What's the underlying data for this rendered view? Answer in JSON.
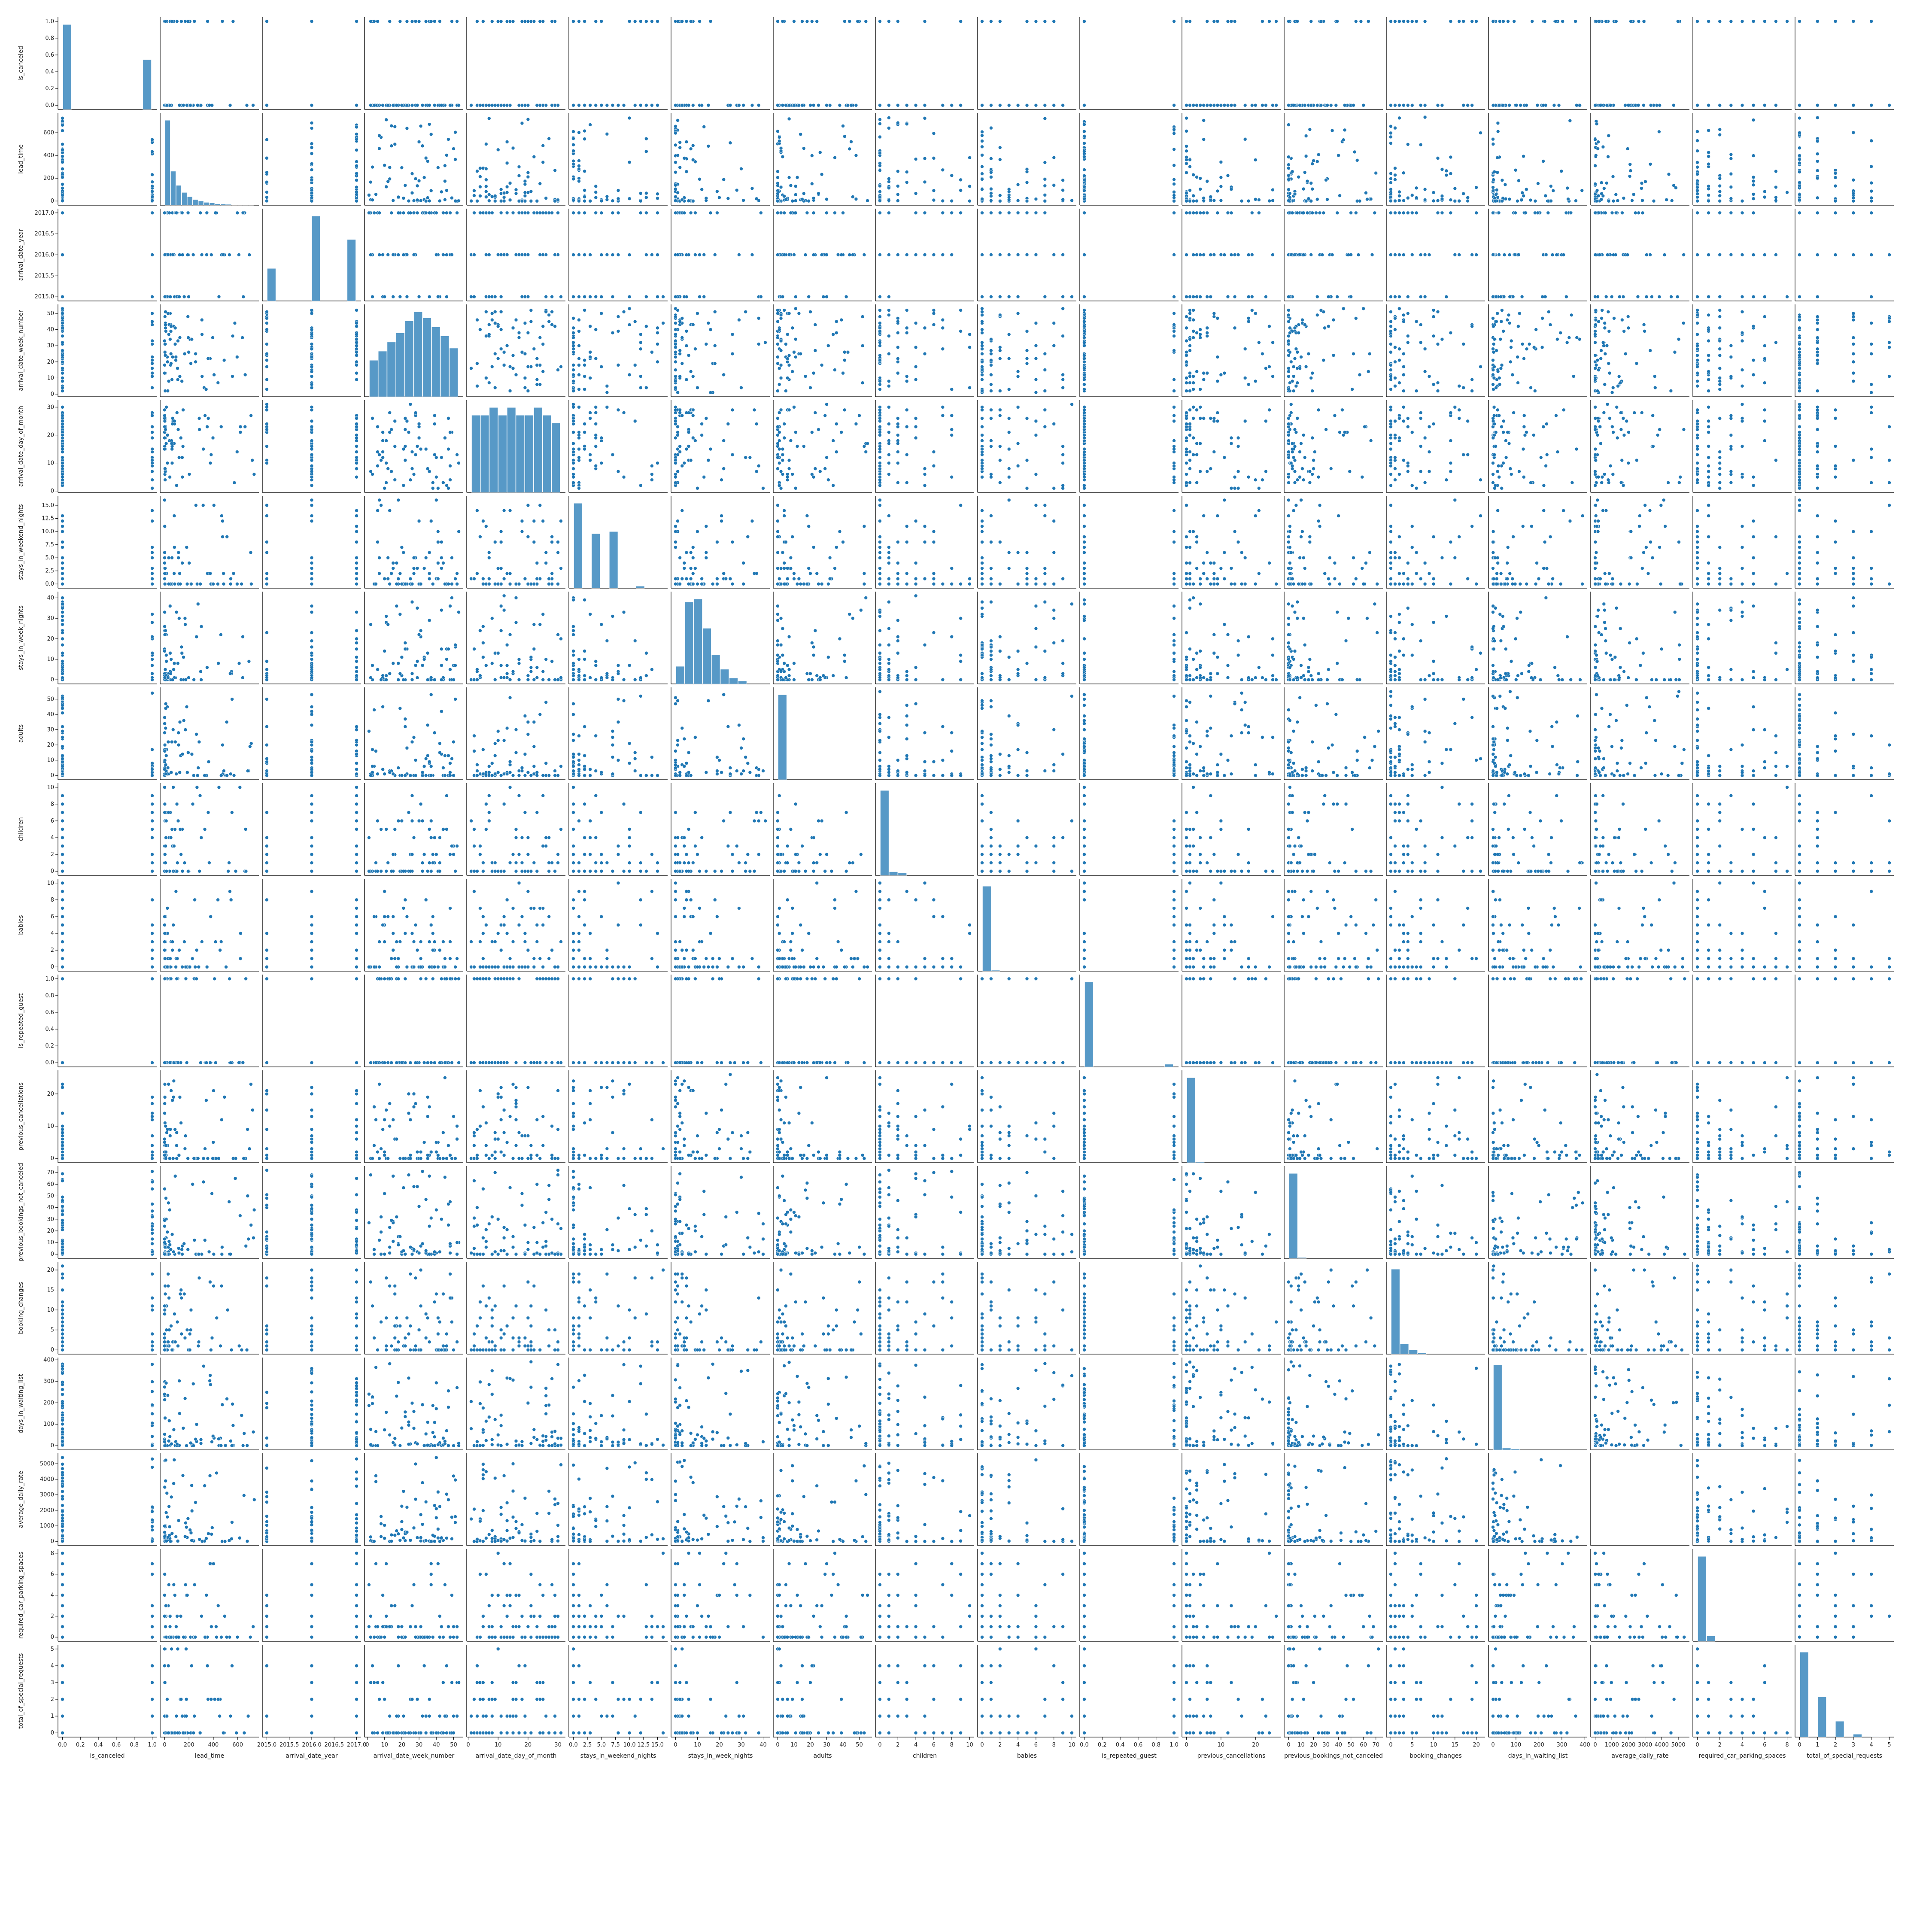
{
  "chart_data": {
    "type": "scatter",
    "kind": "pairplot",
    "diagonal": "histogram",
    "marker_color": "#1f77b4",
    "variables": [
      {
        "name": "is_canceled",
        "range": [
          0,
          1
        ],
        "ticks": [
          "0.0",
          "0.2",
          "0.4",
          "0.6",
          "0.8",
          "1.0"
        ],
        "tick_values": [
          0,
          0.2,
          0.4,
          0.6,
          0.8,
          1.0
        ]
      },
      {
        "name": "lead_time",
        "range": [
          0,
          737
        ],
        "ticks": [
          "0",
          "200",
          "400",
          "600"
        ],
        "tick_values": [
          0,
          200,
          400,
          600
        ]
      },
      {
        "name": "arrival_date_year",
        "range": [
          2015,
          2017
        ],
        "ticks": [
          "2015.0",
          "2015.5",
          "2016.0",
          "2016.5",
          "2017.0"
        ],
        "tick_values": [
          2015,
          2015.5,
          2016,
          2016.5,
          2017
        ]
      },
      {
        "name": "arrival_date_week_number",
        "range": [
          1,
          53
        ],
        "ticks": [
          "0",
          "10",
          "20",
          "30",
          "40",
          "50"
        ],
        "tick_values": [
          0,
          10,
          20,
          30,
          40,
          50
        ]
      },
      {
        "name": "arrival_date_day_of_month",
        "range": [
          1,
          31
        ],
        "ticks": [
          "0",
          "10",
          "20",
          "30"
        ],
        "tick_values": [
          0,
          10,
          20,
          30
        ]
      },
      {
        "name": "stays_in_weekend_nights",
        "range": [
          0,
          16
        ],
        "ticks": [
          "0.0",
          "2.5",
          "5.0",
          "7.5",
          "10.0",
          "12.5",
          "15.0"
        ],
        "tick_values": [
          0,
          2.5,
          5,
          7.5,
          10,
          12.5,
          15
        ]
      },
      {
        "name": "stays_in_week_nights",
        "range": [
          0,
          41
        ],
        "ticks": [
          "0",
          "10",
          "20",
          "30",
          "40"
        ],
        "tick_values": [
          0,
          10,
          20,
          30,
          40
        ]
      },
      {
        "name": "adults",
        "range": [
          0,
          55
        ],
        "ticks": [
          "0",
          "10",
          "20",
          "30",
          "40",
          "50"
        ],
        "tick_values": [
          0,
          10,
          20,
          30,
          40,
          50
        ]
      },
      {
        "name": "children",
        "range": [
          0,
          10
        ],
        "ticks": [
          "0",
          "2",
          "4",
          "6",
          "8",
          "10"
        ],
        "tick_values": [
          0,
          2,
          4,
          6,
          8,
          10
        ]
      },
      {
        "name": "babies",
        "range": [
          0,
          10
        ],
        "ticks": [
          "0",
          "2",
          "4",
          "6",
          "8",
          "10"
        ],
        "tick_values": [
          0,
          2,
          4,
          6,
          8,
          10
        ]
      },
      {
        "name": "is_repeated_guest",
        "range": [
          0,
          1
        ],
        "ticks": [
          "0.0",
          "0.2",
          "0.4",
          "0.6",
          "0.8",
          "1.0"
        ],
        "tick_values": [
          0,
          0.2,
          0.4,
          0.6,
          0.8,
          1.0
        ]
      },
      {
        "name": "previous_cancellations",
        "range": [
          0,
          26
        ],
        "ticks": [
          "0",
          "10",
          "20"
        ],
        "tick_values": [
          0,
          10,
          20
        ]
      },
      {
        "name": "previous_bookings_not_canceled",
        "range": [
          0,
          72
        ],
        "ticks": [
          "0",
          "10",
          "20",
          "30",
          "40",
          "50",
          "60",
          "70"
        ],
        "tick_values": [
          0,
          10,
          20,
          30,
          40,
          50,
          60,
          70
        ]
      },
      {
        "name": "booking_changes",
        "range": [
          0,
          21
        ],
        "ticks": [
          "0",
          "5",
          "10",
          "15",
          "20"
        ],
        "tick_values": [
          0,
          5,
          10,
          15,
          20
        ]
      },
      {
        "name": "days_in_waiting_list",
        "range": [
          0,
          391
        ],
        "ticks": [
          "0",
          "100",
          "200",
          "300",
          "400"
        ],
        "tick_values": [
          0,
          100,
          200,
          300,
          400
        ]
      },
      {
        "name": "average_daily_rate",
        "range": [
          0,
          5400
        ],
        "ticks": [
          "0",
          "1000",
          "2000",
          "3000",
          "4000",
          "5000"
        ],
        "tick_values": [
          0,
          1000,
          2000,
          3000,
          4000,
          5000
        ]
      },
      {
        "name": "required_car_parking_spaces",
        "range": [
          0,
          8
        ],
        "ticks": [
          "0",
          "2",
          "4",
          "6",
          "8"
        ],
        "tick_values": [
          0,
          2,
          4,
          6,
          8
        ]
      },
      {
        "name": "total_of_special_requests",
        "range": [
          0,
          5
        ],
        "ticks": [
          "0",
          "1",
          "2",
          "3",
          "4",
          "5"
        ],
        "tick_values": [
          0,
          1,
          2,
          3,
          4,
          5
        ]
      }
    ],
    "histograms": [
      {
        "name": "is_canceled",
        "values": [
          0.63,
          0,
          0,
          0,
          0,
          0,
          0,
          0,
          0,
          0.37
        ],
        "ylim": [
          0,
          1
        ]
      },
      {
        "name": "lead_time",
        "values": [
          30,
          12,
          7,
          4.5,
          3,
          2,
          1.5,
          1,
          0.8,
          0.5,
          0.4,
          0.3,
          0.2,
          0.15,
          0.1,
          0.05
        ],
        "ylim": [
          0,
          700
        ]
      },
      {
        "name": "arrival_date_year",
        "values": [
          0.18,
          0,
          0,
          0,
          0,
          0.47,
          0,
          0,
          0,
          0.34
        ],
        "ylim": [
          0,
          2017
        ]
      },
      {
        "name": "arrival_date_week_number",
        "values": [
          1.2,
          1.5,
          1.8,
          2.1,
          2.5,
          2.8,
          2.6,
          2.3,
          2.0,
          1.6
        ],
        "ylim": [
          0,
          53
        ]
      },
      {
        "name": "arrival_date_day_of_month",
        "values": [
          1.0,
          1.0,
          1.1,
          1.0,
          1.1,
          1.0,
          1.0,
          1.1,
          1.0,
          0.9
        ],
        "ylim": [
          0,
          31
        ]
      },
      {
        "name": "stays_in_weekend_nights",
        "values": [
          0.42,
          0,
          0.27,
          0,
          0.28,
          0,
          0,
          0.01,
          0,
          0
        ],
        "ylim": [
          0,
          16
        ]
      },
      {
        "name": "stays_in_week_nights",
        "values": [
          0.06,
          0.28,
          0.29,
          0.19,
          0.1,
          0.05,
          0.02,
          0.01,
          0,
          0
        ],
        "ylim": [
          0,
          41
        ]
      },
      {
        "name": "adults",
        "values": [
          1.0,
          0,
          0,
          0,
          0,
          0,
          0,
          0,
          0,
          0
        ],
        "ylim": [
          0,
          55
        ]
      },
      {
        "name": "children",
        "values": [
          0.93,
          0.04,
          0.03,
          0,
          0,
          0,
          0,
          0,
          0,
          0
        ],
        "ylim": [
          0,
          10
        ]
      },
      {
        "name": "babies",
        "values": [
          0.99,
          0.01,
          0,
          0,
          0,
          0,
          0,
          0,
          0,
          0
        ],
        "ylim": [
          0,
          10
        ]
      },
      {
        "name": "is_repeated_guest",
        "values": [
          0.97,
          0,
          0,
          0,
          0,
          0,
          0,
          0,
          0,
          0.03
        ],
        "ylim": [
          0,
          1
        ]
      },
      {
        "name": "previous_cancellations",
        "values": [
          0.99,
          0.01,
          0,
          0,
          0,
          0,
          0,
          0,
          0,
          0
        ],
        "ylim": [
          0,
          26
        ]
      },
      {
        "name": "previous_bookings_not_canceled",
        "values": [
          0.99,
          0.01,
          0,
          0,
          0,
          0,
          0,
          0,
          0,
          0
        ],
        "ylim": [
          0,
          72
        ]
      },
      {
        "name": "booking_changes",
        "values": [
          0.85,
          0.1,
          0.04,
          0.01,
          0,
          0,
          0,
          0,
          0,
          0
        ],
        "ylim": [
          0,
          21
        ]
      },
      {
        "name": "days_in_waiting_list",
        "values": [
          0.97,
          0.02,
          0.01,
          0,
          0,
          0,
          0,
          0,
          0,
          0
        ],
        "ylim": [
          0,
          391
        ]
      },
      {
        "name": "average_daily_rate",
        "values": [
          0,
          0,
          0,
          0,
          0,
          0,
          0,
          0,
          0,
          0
        ],
        "ylim": [
          0,
          5400
        ]
      },
      {
        "name": "required_car_parking_spaces",
        "values": [
          0.94,
          0.06,
          0,
          0,
          0,
          0,
          0,
          0,
          0,
          0
        ],
        "ylim": [
          0,
          8
        ]
      },
      {
        "name": "total_of_special_requests",
        "values": [
          0.59,
          0,
          0.28,
          0,
          0.11,
          0,
          0.02,
          0,
          0.003,
          0.0004
        ],
        "ylim": [
          0,
          5
        ]
      }
    ]
  }
}
